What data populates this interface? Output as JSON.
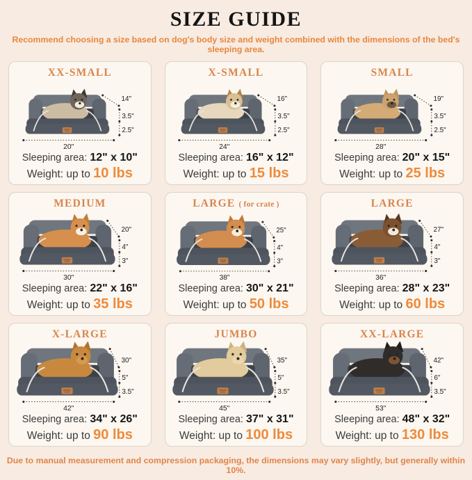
{
  "page": {
    "title": "SIZE GUIDE",
    "subtitle": "Recommend choosing a size based on dog's body size and weight combined with the dimensions of the bed's sleeping area.",
    "footer": "Due to manual measurement and compression packaging, the dimensions may vary slightly, but generally within 10%."
  },
  "labels": {
    "sleeping": "Sleeping area: ",
    "weight": "Weight: up to "
  },
  "colors": {
    "background": "#f8ebe2",
    "card_background": "#fcf7f0",
    "card_border": "#dcd4c9",
    "title_black": "#141414",
    "size_title_orange": "#d8854e",
    "note_orange": "#e8873d",
    "weight_orange": "#ee8a3b",
    "bed_gray": "#4e545d",
    "bolster_gray": "#70767e",
    "piping_white": "#e6e4e1"
  },
  "cards": [
    {
      "title": "XX-SMALL",
      "title_suffix": "",
      "pet": {
        "name": "cat",
        "colors": {
          "body": "#cdbca4",
          "head": "#6f655a",
          "ear": "#3f3933",
          "muzzle": "#f1ebdf"
        }
      },
      "dims": {
        "depth": "14\"",
        "upper": "3.5\"",
        "lower": "2.5\"",
        "width": "20\""
      },
      "sleeping": "12\" x 10\"",
      "weight": "10 lbs"
    },
    {
      "title": "X-SMALL",
      "title_suffix": "",
      "pet": {
        "name": "shih-tzu",
        "colors": {
          "body": "#e6d7bd",
          "head": "#d9c092",
          "ear": "#b5864f",
          "muzzle": "#f4eee2"
        }
      },
      "dims": {
        "depth": "16\"",
        "upper": "3.5\"",
        "lower": "2.5\"",
        "width": "24\""
      },
      "sleeping": "16\" x 12\"",
      "weight": "15 lbs"
    },
    {
      "title": "SMALL",
      "title_suffix": "",
      "pet": {
        "name": "french-bulldog",
        "colors": {
          "body": "#d4ab77",
          "head": "#cda26e",
          "ear": "#c1955f",
          "muzzle": "#6d5945"
        }
      },
      "dims": {
        "depth": "19\"",
        "upper": "3.5\"",
        "lower": "2.5\"",
        "width": "28\""
      },
      "sleeping": "20\" x 15\"",
      "weight": "25 lbs"
    },
    {
      "title": "MEDIUM",
      "title_suffix": "",
      "pet": {
        "name": "corgi",
        "colors": {
          "body": "#d68f4c",
          "head": "#d68f4c",
          "ear": "#c57c37",
          "muzzle": "#f7f0e4"
        }
      },
      "dims": {
        "depth": "20\"",
        "upper": "4\"",
        "lower": "3\"",
        "width": "30\""
      },
      "sleeping": "22\" x 16\"",
      "weight": "35 lbs"
    },
    {
      "title": "LARGE",
      "title_suffix": "( for crate )",
      "pet": {
        "name": "shiba-inu",
        "colors": {
          "body": "#d28d4f",
          "head": "#d28d4f",
          "ear": "#bf7a3c",
          "muzzle": "#f5ecdc"
        }
      },
      "dims": {
        "depth": "25\"",
        "upper": "4\"",
        "lower": "3\"",
        "width": "38\""
      },
      "sleeping": "30\" x 21\"",
      "weight": "50 lbs"
    },
    {
      "title": "LARGE",
      "title_suffix": "",
      "pet": {
        "name": "border-collie",
        "colors": {
          "body": "#8a5c36",
          "head": "#7c5130",
          "ear": "#59381f",
          "muzzle": "#f2ead9"
        }
      },
      "dims": {
        "depth": "27\"",
        "upper": "4\"",
        "lower": "3\"",
        "width": "36\""
      },
      "sleeping": "28\" x 23\"",
      "weight": "60 lbs"
    },
    {
      "title": "X-LARGE",
      "title_suffix": "",
      "pet": {
        "name": "golden-retriever",
        "colors": {
          "body": "#c8893f",
          "head": "#c8893f",
          "ear": "#b2722f",
          "muzzle": "#d69a50"
        }
      },
      "dims": {
        "depth": "30\"",
        "upper": "5\"",
        "lower": "3.5\"",
        "width": "42\""
      },
      "sleeping": "34\" x 26\"",
      "weight": "90 lbs"
    },
    {
      "title": "JUMBO",
      "title_suffix": "",
      "pet": {
        "name": "labrador",
        "colors": {
          "body": "#e2cb9c",
          "head": "#e2cb9c",
          "ear": "#cfb27e",
          "muzzle": "#ead8ad"
        }
      },
      "dims": {
        "depth": "35\"",
        "upper": "5\"",
        "lower": "3.5\"",
        "width": "45\""
      },
      "sleeping": "37\" x 31\"",
      "weight": "100 lbs"
    },
    {
      "title": "XX-LARGE",
      "title_suffix": "",
      "pet": {
        "name": "rottweiler",
        "colors": {
          "body": "#2f2c2a",
          "head": "#2f2c2a",
          "ear": "#211f1e",
          "muzzle": "#7b5536"
        }
      },
      "dims": {
        "depth": "42\"",
        "upper": "6\"",
        "lower": "3.5\"",
        "width": "53\""
      },
      "sleeping": "48\" x 32\"",
      "weight": "130 lbs"
    }
  ]
}
